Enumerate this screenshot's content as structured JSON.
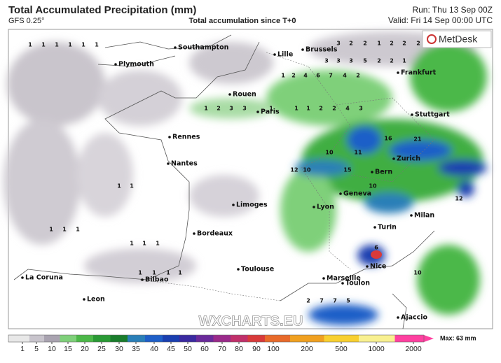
{
  "header": {
    "title": "Total Accumulated Precipitation (mm)",
    "model": "GFS 0.25°",
    "subtitle": "Total accumulation since T+0",
    "run": "Run: Thu 13 Sep 00Z",
    "valid": "Valid: Fri 14 Sep 00:00 UTC"
  },
  "logo": "MetDesk",
  "watermark": "WXCHARTS.EU",
  "cities": [
    "Southampton",
    "Plymouth",
    "Lille",
    "Brussels",
    "Frankfurt",
    "Rouen",
    "Paris",
    "Stuttgart",
    "Rennes",
    "Nantes",
    "Zurich",
    "Bern",
    "Geneva",
    "Limoges",
    "Lyon",
    "Milan",
    "Turin",
    "Bordeaux",
    "Toulouse",
    "Nice",
    "Marseille",
    "Toulon",
    "La Coruna",
    "Bilbao",
    "Leon",
    "Ajaccio"
  ],
  "point_values": [
    1,
    1,
    1,
    1,
    1,
    1,
    3,
    2,
    2,
    1,
    2,
    2,
    2,
    3,
    3,
    3,
    5,
    2,
    2,
    1,
    1,
    2,
    4,
    6,
    7,
    4,
    2,
    1,
    2,
    3,
    3,
    1,
    1,
    1,
    2,
    2,
    4,
    3,
    10,
    11,
    16,
    21,
    12,
    10,
    15,
    10,
    1,
    1,
    1,
    1,
    1,
    1,
    1,
    1,
    1,
    1,
    1,
    1,
    2,
    7,
    7,
    5,
    6,
    10,
    12
  ],
  "colorbar": {
    "ticks": [
      1,
      5,
      10,
      15,
      20,
      25,
      30,
      35,
      40,
      45,
      50,
      60,
      70,
      80,
      90,
      100,
      200,
      500,
      1000,
      2000
    ],
    "colors": [
      "#e8e8e8",
      "#c8c4cc",
      "#a9a3b0",
      "#7fd07a",
      "#4cb848",
      "#2a9a35",
      "#1a7d2c",
      "#2a7fb8",
      "#1f5fc8",
      "#1a3fb0",
      "#3a2aa0",
      "#6a2a9a",
      "#9a2a8a",
      "#c0306a",
      "#d83a3a",
      "#e86a2a",
      "#f0a020",
      "#f8d030",
      "#f8f090",
      "#ff40a0"
    ],
    "max_label": "Max: 63 mm"
  }
}
